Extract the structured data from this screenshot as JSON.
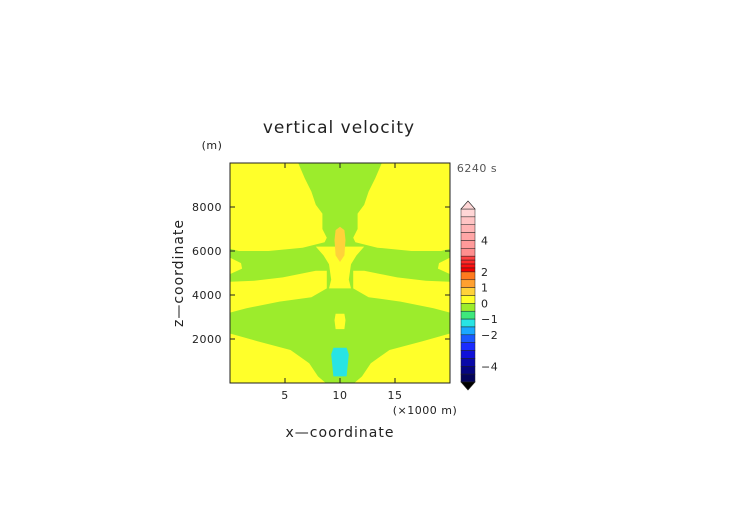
{
  "chart_data": {
    "type": "heatmap",
    "title": "vertical velocity",
    "xlabel": "x—coordinate",
    "ylabel": "z—coordinate",
    "x_unit": "(×1000 m)",
    "y_unit": "(m)",
    "time_label": "6240 s",
    "xlim": [
      0,
      20
    ],
    "ylim": [
      0,
      10000
    ],
    "x_ticks": [
      5,
      10,
      15
    ],
    "y_ticks": [
      2000,
      4000,
      6000,
      8000
    ],
    "x_tick_labels": [
      "5",
      "10",
      "15"
    ],
    "y_tick_labels": [
      "2000",
      "4000",
      "6000",
      "8000"
    ],
    "colorbar": {
      "ticks": [
        4,
        2,
        1,
        0,
        -1,
        -2,
        -4
      ],
      "tick_labels": [
        "4",
        "2",
        "1",
        "0",
        "−1",
        "−2",
        "−4"
      ],
      "levels": [
        {
          "lo": 5.5,
          "hi": 6,
          "color": "#ffd6d6"
        },
        {
          "lo": 5,
          "hi": 5.5,
          "color": "#ffc4c4"
        },
        {
          "lo": 4.5,
          "hi": 5,
          "color": "#ffb4b4"
        },
        {
          "lo": 4,
          "hi": 4.5,
          "color": "#ffa6a6"
        },
        {
          "lo": 3.5,
          "hi": 4,
          "color": "#ff9a9a"
        },
        {
          "lo": 3,
          "hi": 3.5,
          "color": "#ff8e8e"
        },
        {
          "lo": 2.75,
          "hi": 3,
          "color": "#ff4040"
        },
        {
          "lo": 2.5,
          "hi": 2.75,
          "color": "#ff2a2a"
        },
        {
          "lo": 2.25,
          "hi": 2.5,
          "color": "#ff1010"
        },
        {
          "lo": 2,
          "hi": 2.25,
          "color": "#f50000"
        },
        {
          "lo": 1.5,
          "hi": 2,
          "color": "#ff7a1e"
        },
        {
          "lo": 1,
          "hi": 1.5,
          "color": "#ffa030"
        },
        {
          "lo": 0.5,
          "hi": 1,
          "color": "#ffd23a"
        },
        {
          "lo": 0,
          "hi": 0.5,
          "color": "#ffff2a"
        },
        {
          "lo": -0.5,
          "hi": 0,
          "color": "#9cec2c"
        },
        {
          "lo": -1,
          "hi": -0.5,
          "color": "#3ee87c"
        },
        {
          "lo": -1.5,
          "hi": -1,
          "color": "#28e4e4"
        },
        {
          "lo": -2,
          "hi": -1.5,
          "color": "#1aa8ff"
        },
        {
          "lo": -2.5,
          "hi": -2,
          "color": "#1a5aff"
        },
        {
          "lo": -3,
          "hi": -2.5,
          "color": "#1a2cff"
        },
        {
          "lo": -3.5,
          "hi": -3,
          "color": "#1010d8"
        },
        {
          "lo": -4,
          "hi": -3.5,
          "color": "#0a0aa8"
        },
        {
          "lo": -4.5,
          "hi": -4,
          "color": "#060680"
        },
        {
          "lo": -5,
          "hi": -4.5,
          "color": "#04045a"
        }
      ]
    },
    "field": {
      "background_value": 0.25,
      "regions": [
        {
          "value": -0.25,
          "label": "top center green plume",
          "points": [
            [
              6.2,
              10000
            ],
            [
              13.8,
              10000
            ],
            [
              13.2,
              9300
            ],
            [
              12.6,
              8700
            ],
            [
              12.2,
              8100
            ],
            [
              11.6,
              7700
            ],
            [
              11.6,
              7000
            ],
            [
              11.2,
              6600
            ],
            [
              11.4,
              6400
            ],
            [
              13.4,
              6150
            ],
            [
              16.5,
              6000
            ],
            [
              19.2,
              6000
            ],
            [
              20,
              6100
            ],
            [
              20,
              4600
            ],
            [
              17.8,
              4650
            ],
            [
              15.2,
              4800
            ],
            [
              12.2,
              5100
            ],
            [
              11.2,
              5100
            ],
            [
              11.2,
              4300
            ],
            [
              12.6,
              3900
            ],
            [
              15.5,
              3700
            ],
            [
              18.5,
              3400
            ],
            [
              20,
              3200
            ],
            [
              20,
              2250
            ],
            [
              17.5,
              1900
            ],
            [
              14.5,
              1500
            ],
            [
              12.8,
              900
            ],
            [
              12.0,
              300
            ],
            [
              11.3,
              0
            ],
            [
              8.7,
              0
            ],
            [
              8.0,
              300
            ],
            [
              7.2,
              900
            ],
            [
              5.5,
              1500
            ],
            [
              2.5,
              1900
            ],
            [
              0,
              2250
            ],
            [
              0,
              3200
            ],
            [
              1.5,
              3400
            ],
            [
              4.5,
              3700
            ],
            [
              7.4,
              3900
            ],
            [
              8.8,
              4300
            ],
            [
              8.8,
              5100
            ],
            [
              7.8,
              5100
            ],
            [
              4.8,
              4800
            ],
            [
              2.2,
              4650
            ],
            [
              0,
              4600
            ],
            [
              0,
              6100
            ],
            [
              0.8,
              6000
            ],
            [
              3.5,
              6000
            ],
            [
              6.6,
              6150
            ],
            [
              8.6,
              6400
            ],
            [
              8.8,
              6600
            ],
            [
              8.4,
              7000
            ],
            [
              8.4,
              7700
            ],
            [
              7.8,
              8100
            ],
            [
              7.4,
              8700
            ],
            [
              6.8,
              9300
            ]
          ]
        },
        {
          "value": 0.25,
          "label": "central yellow blob",
          "points": [
            [
              7.8,
              6200
            ],
            [
              12.2,
              6200
            ],
            [
              11.5,
              5800
            ],
            [
              11.0,
              5400
            ],
            [
              10.8,
              4700
            ],
            [
              11.0,
              4300
            ],
            [
              9.0,
              4300
            ],
            [
              9.2,
              4700
            ],
            [
              9.0,
              5400
            ],
            [
              8.5,
              5800
            ]
          ]
        },
        {
          "value": 0.25,
          "label": "small yellow cell",
          "points": [
            [
              9.6,
              3150
            ],
            [
              10.4,
              3150
            ],
            [
              10.5,
              2850
            ],
            [
              10.4,
              2450
            ],
            [
              9.6,
              2450
            ],
            [
              9.5,
              2850
            ]
          ]
        },
        {
          "value": 0.25,
          "label": "right edge yellow notch",
          "points": [
            [
              20,
              5700
            ],
            [
              19.0,
              5450
            ],
            [
              18.9,
              5200
            ],
            [
              20,
              4950
            ]
          ]
        },
        {
          "value": 0.25,
          "label": "left edge yellow notch",
          "points": [
            [
              0,
              5700
            ],
            [
              1.0,
              5450
            ],
            [
              1.1,
              5200
            ],
            [
              0,
              4950
            ]
          ]
        },
        {
          "value": 0.75,
          "label": "orange updraft core",
          "points": [
            [
              10,
              7100
            ],
            [
              10.4,
              6950
            ],
            [
              10.5,
              6500
            ],
            [
              10.4,
              5800
            ],
            [
              10,
              5500
            ],
            [
              9.6,
              5800
            ],
            [
              9.5,
              6500
            ],
            [
              9.6,
              6950
            ]
          ]
        },
        {
          "value": -1.25,
          "label": "cyan downdraft core",
          "points": [
            [
              9.4,
              1600
            ],
            [
              10.6,
              1600
            ],
            [
              10.8,
              1300
            ],
            [
              10.6,
              300
            ],
            [
              9.4,
              300
            ],
            [
              9.2,
              1300
            ]
          ]
        }
      ]
    }
  }
}
